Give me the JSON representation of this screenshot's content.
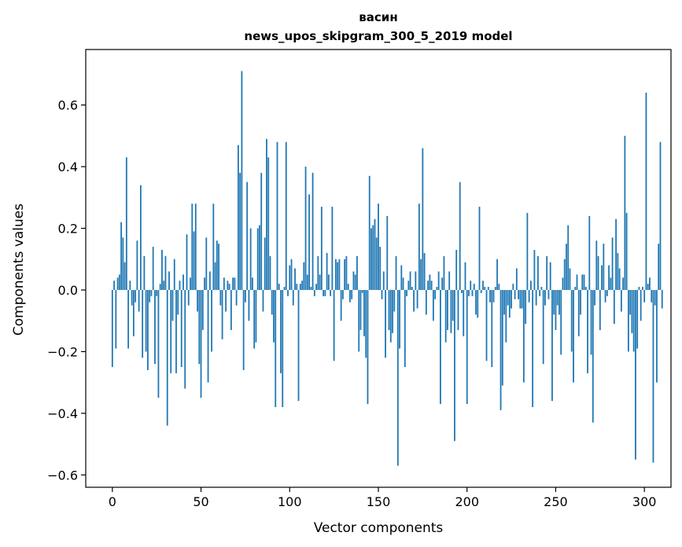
{
  "chart_data": {
    "type": "bar",
    "title": "васин",
    "subtitle": "news_upos_skipgram_300_5_2019 model",
    "xlabel": "Vector components",
    "ylabel": "Components values",
    "xlim": [
      -15,
      315
    ],
    "ylim": [
      -0.64,
      0.78
    ],
    "xticks": [
      0,
      50,
      100,
      150,
      200,
      250,
      300
    ],
    "xtick_labels": [
      "0",
      "50",
      "100",
      "150",
      "200",
      "250",
      "300"
    ],
    "yticks": [
      -0.6,
      -0.4,
      -0.2,
      0.0,
      0.2,
      0.4,
      0.6
    ],
    "ytick_labels": [
      "−0.6",
      "−0.4",
      "−0.2",
      "0.0",
      "0.2",
      "0.4",
      "0.6"
    ],
    "grid": false,
    "legend": "none",
    "bar_color": "#1f77b4",
    "x_start": 0,
    "values": [
      -0.25,
      0.03,
      -0.19,
      0.04,
      0.05,
      0.22,
      0.17,
      0.09,
      0.43,
      -0.19,
      0.03,
      -0.05,
      -0.15,
      -0.04,
      0.16,
      -0.07,
      0.34,
      -0.22,
      0.11,
      -0.2,
      -0.26,
      -0.04,
      -0.02,
      0.14,
      -0.24,
      -0.02,
      -0.35,
      0.02,
      0.13,
      0.03,
      0.11,
      -0.44,
      0.06,
      -0.27,
      -0.1,
      0.1,
      -0.27,
      -0.08,
      0.03,
      -0.25,
      0.05,
      -0.32,
      0.18,
      -0.05,
      0.04,
      0.28,
      0.19,
      0.28,
      -0.07,
      -0.24,
      -0.35,
      -0.13,
      0.04,
      0.17,
      -0.3,
      0.06,
      -0.2,
      0.28,
      0.09,
      0.16,
      0.15,
      -0.05,
      -0.16,
      0.04,
      -0.07,
      0.03,
      0.02,
      -0.13,
      0.04,
      0.04,
      -0.05,
      0.47,
      0.38,
      0.71,
      -0.26,
      -0.04,
      0.35,
      -0.1,
      0.2,
      0.04,
      -0.19,
      -0.17,
      0.2,
      0.21,
      0.38,
      -0.07,
      0.17,
      0.49,
      0.43,
      0.11,
      -0.08,
      -0.17,
      -0.38,
      0.48,
      0.02,
      -0.27,
      -0.38,
      0.01,
      0.48,
      -0.02,
      0.08,
      0.1,
      -0.05,
      0.07,
      0.02,
      -0.36,
      0.02,
      0.03,
      0.09,
      0.4,
      0.05,
      0.31,
      0.01,
      0.38,
      -0.02,
      0.02,
      0.11,
      0.05,
      0.27,
      -0.02,
      -0.02,
      0.12,
      0.05,
      -0.02,
      0.27,
      -0.23,
      0.1,
      0.09,
      0.1,
      -0.1,
      -0.03,
      0.1,
      0.11,
      0.02,
      -0.04,
      -0.03,
      0.06,
      0.05,
      0.11,
      -0.2,
      -0.13,
      -0.01,
      -0.15,
      -0.22,
      -0.37,
      0.37,
      0.2,
      0.21,
      0.23,
      0.17,
      0.28,
      0.14,
      -0.03,
      0.06,
      -0.22,
      0.24,
      -0.13,
      -0.17,
      -0.14,
      -0.07,
      0.11,
      -0.57,
      -0.19,
      0.08,
      0.04,
      -0.25,
      -0.02,
      0.03,
      0.06,
      0.01,
      -0.07,
      0.06,
      -0.06,
      0.28,
      0.1,
      0.46,
      0.12,
      -0.08,
      0.03,
      0.05,
      0.03,
      -0.1,
      -0.03,
      0.01,
      0.06,
      -0.37,
      0.04,
      0.11,
      -0.17,
      -0.13,
      0.06,
      -0.14,
      -0.1,
      -0.49,
      0.13,
      -0.13,
      0.35,
      -0.01,
      -0.15,
      0.09,
      -0.37,
      -0.02,
      0.03,
      -0.02,
      0.02,
      -0.08,
      -0.09,
      0.27,
      -0.01,
      0.03,
      0.01,
      -0.23,
      0.01,
      -0.04,
      -0.25,
      -0.04,
      0.01,
      0.1,
      0.02,
      -0.39,
      -0.31,
      -0.08,
      -0.17,
      -0.05,
      -0.09,
      -0.06,
      0.02,
      -0.03,
      0.07,
      -0.03,
      -0.06,
      -0.06,
      -0.3,
      -0.11,
      0.25,
      -0.04,
      0.03,
      -0.38,
      0.13,
      -0.05,
      0.11,
      -0.02,
      0.01,
      -0.24,
      -0.05,
      0.11,
      -0.03,
      0.09,
      -0.36,
      -0.08,
      -0.13,
      -0.05,
      -0.08,
      -0.21,
      0.04,
      0.1,
      0.15,
      0.21,
      0.07,
      -0.2,
      -0.3,
      0.01,
      0.05,
      -0.15,
      -0.08,
      0.05,
      0.05,
      0.01,
      -0.27,
      0.24,
      -0.21,
      -0.43,
      -0.05,
      0.16,
      0.11,
      -0.13,
      0.08,
      0.15,
      -0.04,
      -0.02,
      0.08,
      0.04,
      0.17,
      -0.11,
      0.23,
      0.12,
      0.07,
      -0.07,
      0.04,
      0.5,
      0.25,
      -0.2,
      -0.08,
      -0.14,
      -0.2,
      -0.55,
      -0.19,
      0.01,
      -0.1,
      0.01,
      -0.04,
      0.64,
      0.02,
      0.04,
      -0.04,
      -0.56,
      -0.05,
      -0.3,
      0.15,
      0.48,
      -0.06
    ]
  }
}
